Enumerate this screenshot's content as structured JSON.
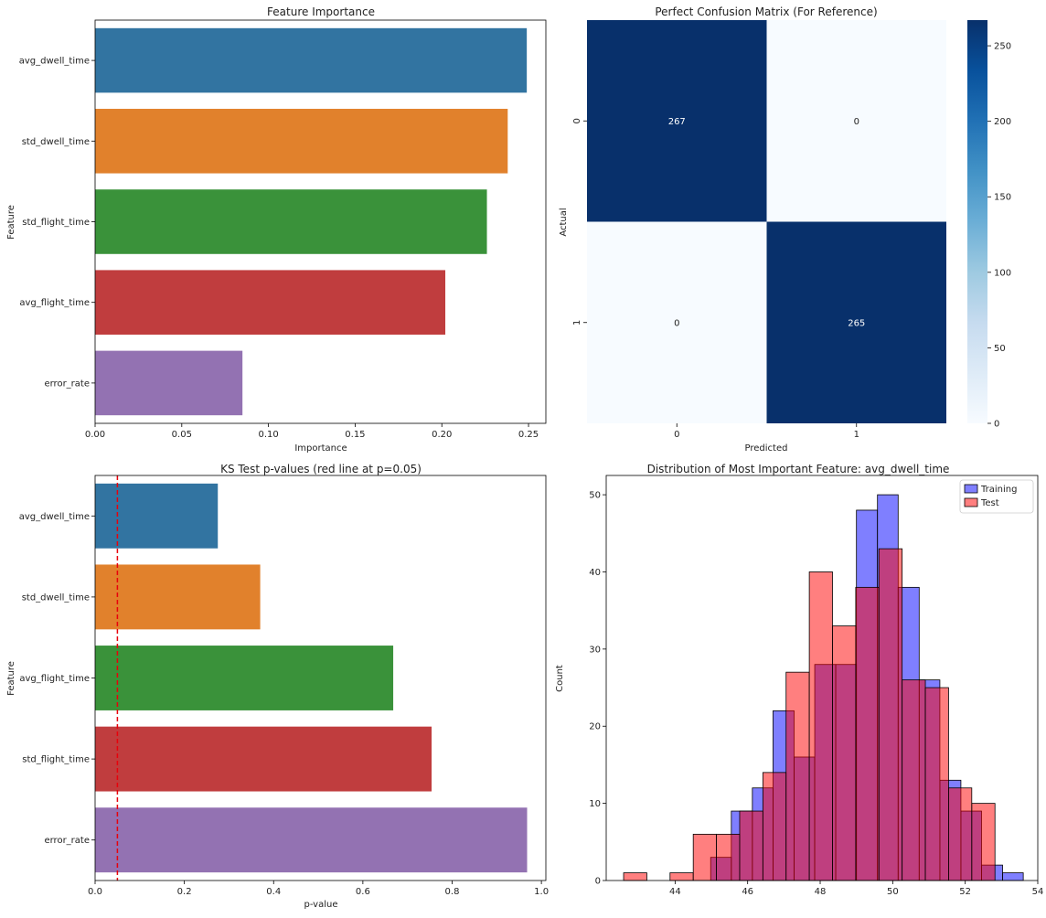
{
  "chart_data": [
    {
      "type": "bar",
      "orientation": "horizontal",
      "title": "Feature Importance",
      "xlabel": "Importance",
      "ylabel": "Feature",
      "categories": [
        "avg_dwell_time",
        "std_dwell_time",
        "std_flight_time",
        "avg_flight_time",
        "error_rate"
      ],
      "values": [
        0.249,
        0.238,
        0.226,
        0.202,
        0.085
      ],
      "colors": [
        "#3274a1",
        "#e1812c",
        "#3a923a",
        "#c03d3e",
        "#9372b2"
      ],
      "xlim": [
        0,
        0.26
      ],
      "xticks": [
        "0.00",
        "0.05",
        "0.10",
        "0.15",
        "0.20",
        "0.25"
      ],
      "grid": false
    },
    {
      "type": "heatmap",
      "title": "Perfect Confusion Matrix (For Reference)",
      "xlabel": "Predicted",
      "ylabel": "Actual",
      "x_categories": [
        "0",
        "1"
      ],
      "y_categories": [
        "0",
        "1"
      ],
      "matrix": [
        [
          267,
          0
        ],
        [
          0,
          265
        ]
      ],
      "colormap": "Blues",
      "colorbar_range": [
        0,
        267
      ],
      "colorbar_ticks": [
        "0",
        "50",
        "100",
        "150",
        "200",
        "250"
      ]
    },
    {
      "type": "bar",
      "orientation": "horizontal",
      "title": "KS Test p-values (red line at p=0.05)",
      "xlabel": "p-value",
      "ylabel": "Feature",
      "categories": [
        "avg_dwell_time",
        "std_dwell_time",
        "avg_flight_time",
        "std_flight_time",
        "error_rate"
      ],
      "values": [
        0.275,
        0.37,
        0.668,
        0.754,
        0.968
      ],
      "colors": [
        "#3274a1",
        "#e1812c",
        "#3a923a",
        "#c03d3e",
        "#9372b2"
      ],
      "reference_line": {
        "x": 0.05,
        "color": "#e8000b",
        "style": "dashed"
      },
      "xlim": [
        0,
        1.01
      ],
      "xticks": [
        "0.0",
        "0.2",
        "0.4",
        "0.6",
        "0.8",
        "1.0"
      ],
      "grid": false
    },
    {
      "type": "histogram",
      "title": "Distribution of Most Important Feature: avg_dwell_time",
      "xlabel": "",
      "ylabel": "Count",
      "xlim": [
        42.1,
        54.0
      ],
      "ylim": [
        0,
        52.5
      ],
      "xticks": [
        "44",
        "46",
        "48",
        "50",
        "52",
        "54"
      ],
      "yticks": [
        "0",
        "10",
        "20",
        "30",
        "40",
        "50"
      ],
      "legend": {
        "position": "top-right"
      },
      "series": [
        {
          "name": "Training",
          "color": "#0000ff",
          "bins": [
            [
              44.98,
              45.55,
              3
            ],
            [
              45.55,
              46.13,
              9
            ],
            [
              46.13,
              46.7,
              12
            ],
            [
              46.7,
              47.28,
              22
            ],
            [
              47.28,
              47.85,
              16
            ],
            [
              47.85,
              48.43,
              28
            ],
            [
              48.43,
              49.0,
              28
            ],
            [
              49.0,
              49.58,
              48
            ],
            [
              49.58,
              50.15,
              50
            ],
            [
              50.15,
              50.73,
              38
            ],
            [
              50.73,
              51.3,
              26
            ],
            [
              51.3,
              51.88,
              13
            ],
            [
              51.88,
              52.45,
              9
            ],
            [
              52.45,
              53.03,
              2
            ],
            [
              53.03,
              53.6,
              1
            ]
          ]
        },
        {
          "name": "Test",
          "color": "#ff0000",
          "bins": [
            [
              42.58,
              43.22,
              1
            ],
            [
              43.22,
              43.86,
              0
            ],
            [
              43.86,
              44.5,
              1
            ],
            [
              44.5,
              45.14,
              6
            ],
            [
              45.14,
              45.78,
              6
            ],
            [
              45.78,
              46.42,
              9
            ],
            [
              46.42,
              47.06,
              14
            ],
            [
              47.06,
              47.7,
              27
            ],
            [
              47.7,
              48.34,
              40
            ],
            [
              48.34,
              48.98,
              33
            ],
            [
              48.98,
              49.62,
              38
            ],
            [
              49.62,
              50.26,
              43
            ],
            [
              50.26,
              50.9,
              26
            ],
            [
              50.9,
              51.54,
              25
            ],
            [
              51.54,
              52.18,
              12
            ],
            [
              52.18,
              52.82,
              10
            ]
          ]
        }
      ]
    }
  ]
}
